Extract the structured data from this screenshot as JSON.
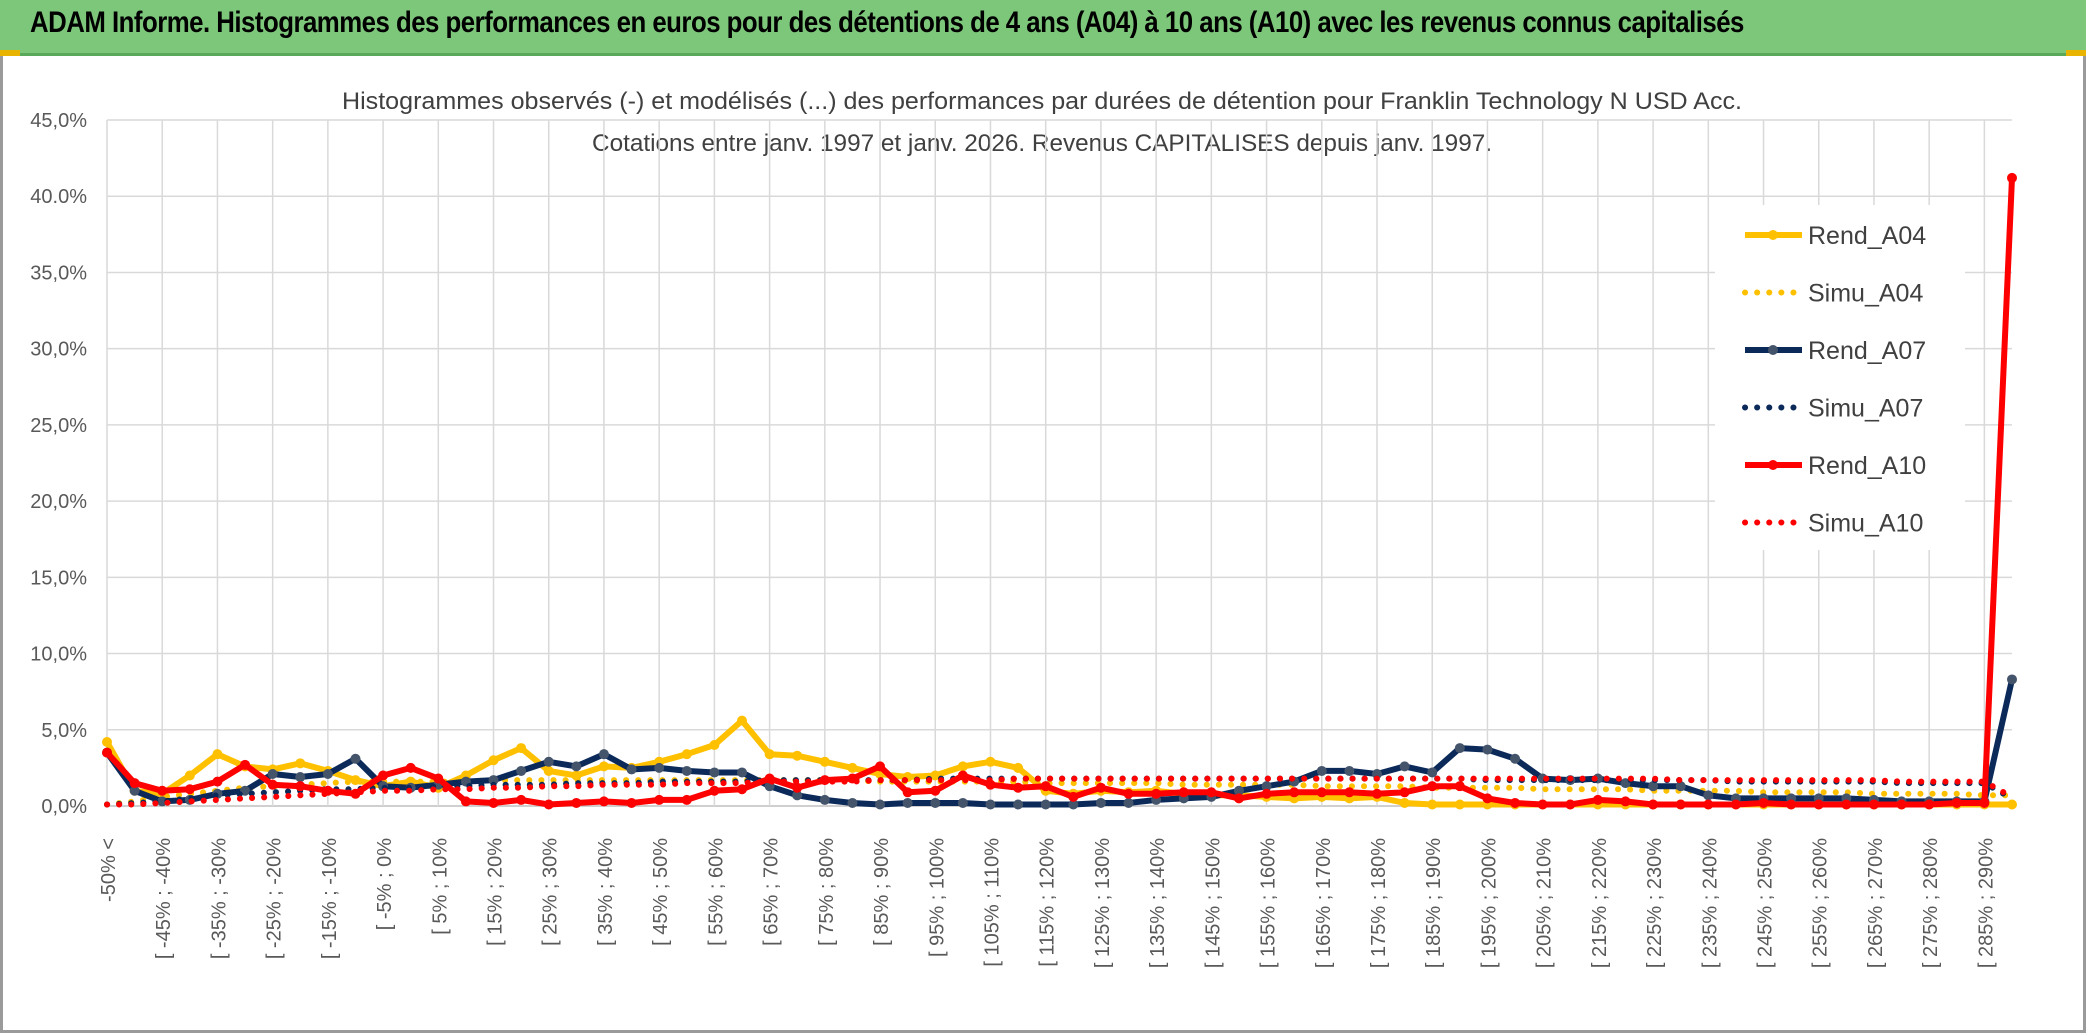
{
  "header": {
    "title": "ADAM Informe. Histogrammes des performances en euros pour des détentions de 4 ans (A04) à 10 ans (A10) avec les revenus connus capitalisés"
  },
  "colors": {
    "banner": "#7dc77a",
    "A04": "#ffc000",
    "A07": "#0b2a5a",
    "A10": "#ff0000",
    "grid": "#d9d9d9",
    "axis_text": "#595959"
  },
  "chart_data": {
    "type": "line",
    "title_line1": "Histogrammes observés (-) et modélisés (...) des performances par durées de détention pour Franklin Technology N USD Acc.",
    "title_line2": "Cotations entre janv. 1997 et janv. 2026. Revenus CAPITALISES depuis janv. 1997.",
    "y_ticks": [
      "45,0%",
      "40.0%",
      "35,0%",
      "30,0%",
      "25,0%",
      "20,0%",
      "15,0%",
      "10,0%",
      "5,0%",
      "0,0%"
    ],
    "ylim": [
      0,
      45
    ],
    "legend_position": "right",
    "grid": true,
    "x_tick_labels": [
      "-50% <",
      "[ -45% ; -40%",
      "[ -35% ; -30%",
      "[ -25% ; -20%",
      "[ -15% ; -10%",
      "[ -5% ; 0%",
      "[ 5% ; 10%",
      "[ 15% ; 20%",
      "[ 25% ; 30%",
      "[ 35% ; 40%",
      "[ 45% ; 50%",
      "[ 55% ; 60%",
      "[ 65% ; 70%",
      "[ 75% ; 80%",
      "[ 85% ; 90%",
      "[ 95% ; 100%",
      "[ 105% ; 110%",
      "[ 115% ; 120%",
      "[ 125% ; 130%",
      "[ 135% ; 140%",
      "[ 145% ; 150%",
      "[ 155% ; 160%",
      "[ 165% ; 170%",
      "[ 175% ; 180%",
      "[ 185% ; 190%",
      "[ 195% ; 200%",
      "[ 205% ; 210%",
      "[ 215% ; 220%",
      "[ 225% ; 230%",
      "[ 235% ; 240%",
      "[ 245% ; 250%",
      "[ 255% ; 260%",
      "[ 265% ; 270%",
      "[ 275% ; 280%",
      "[ 285% ; 290%"
    ],
    "categories_count": 70,
    "series": [
      {
        "name": "Rend_A04",
        "style": "solid",
        "color": "#ffc000",
        "values": [
          4.2,
          1.0,
          0.8,
          2.0,
          3.4,
          2.6,
          2.4,
          2.8,
          2.3,
          1.7,
          1.3,
          1.6,
          1.2,
          2.0,
          3.0,
          3.8,
          2.3,
          2.0,
          2.6,
          2.5,
          2.9,
          3.4,
          4.0,
          5.6,
          3.4,
          3.3,
          2.9,
          2.5,
          2.1,
          1.9,
          2.0,
          2.6,
          2.9,
          2.5,
          1.0,
          0.8,
          1.0,
          0.9,
          1.0,
          0.8,
          0.7,
          0.7,
          0.6,
          0.5,
          0.6,
          0.5,
          0.6,
          0.2,
          0.1,
          0.1,
          0.1,
          0.1,
          0.1,
          0.1,
          0.1,
          0.1,
          0.1,
          0.1,
          0.1,
          0.1,
          0.1,
          0.1,
          0.1,
          0.1,
          0.1,
          0.1,
          0.1,
          0.1,
          0.1,
          0.1
        ]
      },
      {
        "name": "Simu_A04",
        "style": "dotted",
        "color": "#ffc000",
        "values": [
          0.1,
          0.3,
          0.6,
          0.8,
          1.0,
          1.2,
          1.3,
          1.4,
          1.5,
          1.6,
          1.6,
          1.6,
          1.6,
          1.6,
          1.7,
          1.7,
          1.7,
          1.7,
          1.7,
          1.7,
          1.7,
          1.7,
          1.7,
          1.7,
          1.7,
          1.7,
          1.7,
          1.7,
          1.6,
          1.6,
          1.6,
          1.6,
          1.6,
          1.6,
          1.5,
          1.5,
          1.5,
          1.5,
          1.5,
          1.4,
          1.4,
          1.4,
          1.4,
          1.4,
          1.3,
          1.3,
          1.3,
          1.3,
          1.2,
          1.2,
          1.2,
          1.2,
          1.1,
          1.1,
          1.1,
          1.1,
          1.0,
          1.0,
          1.0,
          1.0,
          0.9,
          0.9,
          0.9,
          0.9,
          0.8,
          0.8,
          0.8,
          0.8,
          0.7,
          0.7
        ]
      },
      {
        "name": "Rend_A07",
        "style": "solid",
        "color": "#0b2a5a",
        "values": [
          3.5,
          1.0,
          0.3,
          0.4,
          0.8,
          1.0,
          2.1,
          1.9,
          2.1,
          3.1,
          1.3,
          1.2,
          1.4,
          1.6,
          1.7,
          2.3,
          2.9,
          2.6,
          3.4,
          2.4,
          2.5,
          2.3,
          2.2,
          2.2,
          1.3,
          0.7,
          0.4,
          0.2,
          0.1,
          0.2,
          0.2,
          0.2,
          0.1,
          0.1,
          0.1,
          0.1,
          0.2,
          0.2,
          0.4,
          0.5,
          0.6,
          1.0,
          1.3,
          1.6,
          2.3,
          2.3,
          2.1,
          2.6,
          2.2,
          3.8,
          3.7,
          3.1,
          1.8,
          1.7,
          1.8,
          1.5,
          1.3,
          1.3,
          0.7,
          0.5,
          0.5,
          0.5,
          0.5,
          0.5,
          0.4,
          0.3,
          0.3,
          0.3,
          0.3,
          8.3
        ]
      },
      {
        "name": "Simu_A07",
        "style": "dotted",
        "color": "#0b2a5a",
        "values": [
          0.1,
          0.2,
          0.3,
          0.5,
          0.7,
          0.8,
          0.9,
          1.0,
          1.1,
          1.1,
          1.2,
          1.2,
          1.3,
          1.3,
          1.4,
          1.4,
          1.4,
          1.5,
          1.5,
          1.5,
          1.6,
          1.6,
          1.6,
          1.6,
          1.7,
          1.7,
          1.7,
          1.7,
          1.7,
          1.7,
          1.8,
          1.8,
          1.8,
          1.8,
          1.8,
          1.8,
          1.8,
          1.8,
          1.8,
          1.8,
          1.8,
          1.8,
          1.8,
          1.8,
          1.8,
          1.8,
          1.8,
          1.8,
          1.8,
          1.8,
          1.7,
          1.7,
          1.7,
          1.7,
          1.7,
          1.7,
          1.7,
          1.7,
          1.7,
          1.6,
          1.6,
          1.6,
          1.6,
          1.6,
          1.6,
          1.5,
          1.5,
          1.5,
          1.5,
          0.5
        ]
      },
      {
        "name": "Rend_A10",
        "style": "solid",
        "color": "#ff0000",
        "values": [
          3.5,
          1.5,
          1.0,
          1.1,
          1.6,
          2.7,
          1.4,
          1.3,
          1.0,
          0.8,
          2.0,
          2.5,
          1.8,
          0.3,
          0.2,
          0.4,
          0.1,
          0.2,
          0.3,
          0.2,
          0.4,
          0.4,
          1.0,
          1.1,
          1.8,
          1.2,
          1.7,
          1.8,
          2.6,
          0.9,
          1.0,
          2.0,
          1.4,
          1.2,
          1.3,
          0.6,
          1.2,
          0.8,
          0.8,
          0.9,
          0.9,
          0.5,
          0.8,
          0.9,
          0.9,
          0.9,
          0.8,
          0.9,
          1.3,
          1.3,
          0.5,
          0.2,
          0.1,
          0.1,
          0.4,
          0.3,
          0.1,
          0.1,
          0.1,
          0.1,
          0.2,
          0.1,
          0.1,
          0.1,
          0.1,
          0.1,
          0.1,
          0.2,
          0.2,
          41.2
        ]
      },
      {
        "name": "Simu_A10",
        "style": "dotted",
        "color": "#ff0000",
        "values": [
          0.1,
          0.1,
          0.2,
          0.3,
          0.4,
          0.5,
          0.6,
          0.7,
          0.8,
          0.9,
          1.0,
          1.0,
          1.1,
          1.1,
          1.2,
          1.2,
          1.3,
          1.3,
          1.4,
          1.4,
          1.4,
          1.5,
          1.5,
          1.5,
          1.6,
          1.6,
          1.6,
          1.6,
          1.7,
          1.7,
          1.7,
          1.7,
          1.7,
          1.8,
          1.8,
          1.8,
          1.8,
          1.8,
          1.8,
          1.8,
          1.8,
          1.8,
          1.8,
          1.8,
          1.8,
          1.8,
          1.8,
          1.8,
          1.8,
          1.8,
          1.8,
          1.8,
          1.8,
          1.8,
          1.8,
          1.8,
          1.8,
          1.7,
          1.7,
          1.7,
          1.7,
          1.7,
          1.7,
          1.7,
          1.7,
          1.6,
          1.6,
          1.6,
          1.6,
          0.6
        ]
      }
    ]
  }
}
